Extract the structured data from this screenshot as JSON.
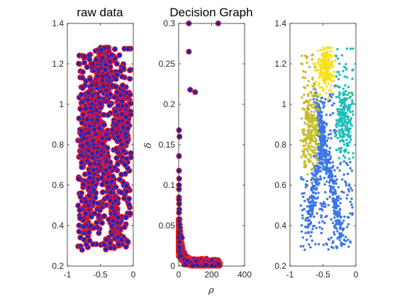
{
  "chart_data": [
    {
      "panel": "left",
      "type": "scatter",
      "title": "raw data",
      "xlabel": "",
      "ylabel": "",
      "xlim": [
        -1,
        0
      ],
      "ylim": [
        0.2,
        1.4
      ],
      "xticks": [
        -1,
        -0.5,
        0
      ],
      "xtick_labels": [
        "-1",
        "-0.5",
        "0"
      ],
      "yticks": [
        0.2,
        0.4,
        0.6,
        0.8,
        1,
        1.2,
        1.4
      ],
      "ytick_labels": [
        "0.2",
        "0.4",
        "0.6",
        "0.8",
        "1",
        "1.2",
        "1.4"
      ],
      "grid": false,
      "marker_face": "#2222bb",
      "marker_edge": "#ff1a1a",
      "point_count": 1500,
      "data_extent": {
        "x": [
          -0.84,
          -0.04
        ],
        "y": [
          0.28,
          1.28
        ]
      }
    },
    {
      "panel": "middle",
      "type": "scatter",
      "title": "Decision Graph",
      "xlabel": "ρ",
      "ylabel": "δ",
      "xlim": [
        0,
        400
      ],
      "ylim": [
        0,
        0.3
      ],
      "xticks": [
        0,
        200,
        400
      ],
      "xtick_labels": [
        "0",
        "200",
        "400"
      ],
      "yticks": [
        0,
        0.05,
        0.1,
        0.15,
        0.2,
        0.25,
        0.3
      ],
      "ytick_labels": [
        "0",
        "0.05",
        "0.1",
        "0.15",
        "0.2",
        "0.25",
        "0.3"
      ],
      "grid": false,
      "marker_face": "#2222bb",
      "marker_edge": "#ff1a1a",
      "points": [
        {
          "x": 62,
          "y": 0.3
        },
        {
          "x": 240,
          "y": 0.3
        },
        {
          "x": 62,
          "y": 0.265
        },
        {
          "x": 70,
          "y": 0.218
        },
        {
          "x": 100,
          "y": 0.215
        },
        {
          "x": 2,
          "y": 0.168
        },
        {
          "x": 5,
          "y": 0.16
        },
        {
          "x": 2,
          "y": 0.136
        },
        {
          "x": 2,
          "y": 0.118
        },
        {
          "x": 3,
          "y": 0.108
        },
        {
          "x": 2,
          "y": 0.1
        },
        {
          "x": 2,
          "y": 0.095
        },
        {
          "x": 2,
          "y": 0.085
        },
        {
          "x": 2,
          "y": 0.082
        },
        {
          "x": 3,
          "y": 0.077
        },
        {
          "x": 4,
          "y": 0.07
        },
        {
          "x": 2,
          "y": 0.066
        },
        {
          "x": 5,
          "y": 0.058
        },
        {
          "x": 3,
          "y": 0.055
        },
        {
          "x": 6,
          "y": 0.051
        },
        {
          "x": 8,
          "y": 0.047
        },
        {
          "x": 10,
          "y": 0.043
        },
        {
          "x": 4,
          "y": 0.041
        },
        {
          "x": 13,
          "y": 0.038
        },
        {
          "x": 20,
          "y": 0.035
        }
      ],
      "bulk_count": 1480,
      "bulk_shape": "L-shaped decay: delta ≈ 0.003 + 0.045·exp(-rho/22), rho 0–250"
    },
    {
      "panel": "right",
      "type": "scatter",
      "title": "",
      "xlabel": "",
      "ylabel": "",
      "xlim": [
        -1,
        0
      ],
      "ylim": [
        0.2,
        1.4
      ],
      "xticks": [
        -1,
        -0.5,
        0
      ],
      "xtick_labels": [
        "-1",
        "-0.5",
        "0"
      ],
      "yticks": [
        0.2,
        0.4,
        0.6,
        0.8,
        1,
        1.2,
        1.4
      ],
      "ytick_labels": [
        "0.2",
        "0.4",
        "0.6",
        "0.8",
        "1",
        "1.2",
        "1.4"
      ],
      "grid": false,
      "series_colors": [
        "#f5e11c",
        "#1cbfb8",
        "#c6bd2a",
        "#3a75ea"
      ],
      "point_count": 1500
    }
  ]
}
